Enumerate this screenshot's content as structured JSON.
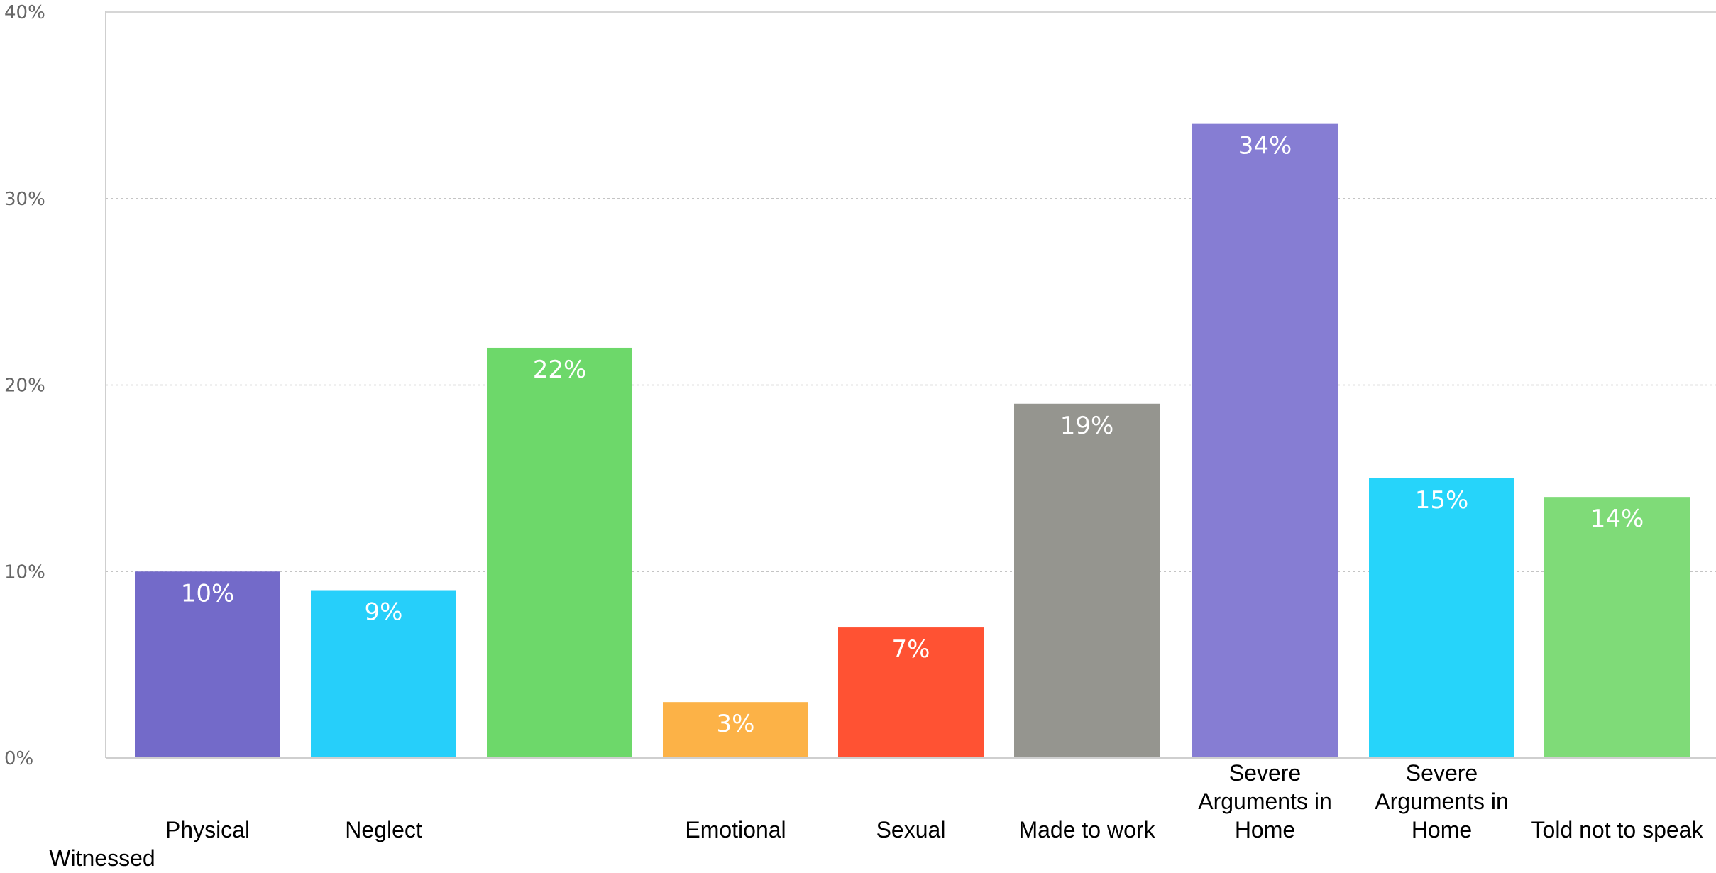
{
  "chart_data": {
    "type": "bar",
    "title": "",
    "xlabel": "",
    "ylabel": "",
    "ylim": [
      0,
      40
    ],
    "yticks": [
      "0%",
      "10%",
      "20%",
      "30%",
      "40%"
    ],
    "grid": true,
    "categories": [
      "Physical",
      "Neglect",
      "",
      "Emotional",
      "Sexual",
      "Made to work",
      "Severe Arguments in Home",
      "Severe Arguments in Home",
      "Told not to speak"
    ],
    "values": [
      10,
      9,
      22,
      3,
      7,
      19,
      34,
      15,
      14
    ],
    "data_labels": [
      "10%",
      "9%",
      "22%",
      "3%",
      "7%",
      "19%",
      "34%",
      "15%",
      "14%"
    ],
    "colors": [
      "#736ac9",
      "#26cffa",
      "#6dd86a",
      "#fcb247",
      "#ff5233",
      "#95958f",
      "#867dd3",
      "#26d4fa",
      "#7fdb78"
    ],
    "extra_labels": [
      "Witnessed"
    ]
  }
}
